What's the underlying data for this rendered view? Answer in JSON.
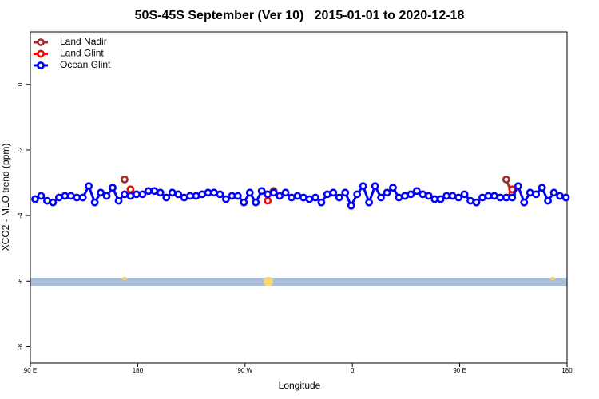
{
  "chart_data": {
    "type": "line",
    "title": "50S-45S September (Ver 10)   2015-01-01 to 2020-12-18",
    "x_label": "Longitude",
    "y_label": "XCO2 - MLO trend (ppm)",
    "xlim": [
      90,
      540
    ],
    "ylim": [
      -8.5,
      1.6
    ],
    "xticks": [
      {
        "value": 90,
        "label": "90 E"
      },
      {
        "value": 180,
        "label": "180"
      },
      {
        "value": 270,
        "label": "90 W"
      },
      {
        "value": 360,
        "label": "0"
      },
      {
        "value": 450,
        "label": "90 E"
      },
      {
        "value": 540,
        "label": "180"
      }
    ],
    "yticks": [
      0,
      -2,
      -4,
      -6,
      -8
    ],
    "legend": "top-left",
    "x": [
      94,
      99,
      104,
      109,
      114,
      119,
      124,
      129,
      134,
      139,
      144,
      149,
      154,
      159,
      164,
      169,
      174,
      179,
      184,
      189,
      194,
      199,
      204,
      209,
      214,
      219,
      224,
      229,
      234,
      239,
      244,
      249,
      254,
      259,
      264,
      269,
      274,
      279,
      284,
      289,
      294,
      299,
      304,
      309,
      314,
      319,
      324,
      329,
      334,
      339,
      344,
      349,
      354,
      359,
      364,
      369,
      374,
      379,
      384,
      389,
      394,
      399,
      404,
      409,
      414,
      419,
      424,
      429,
      434,
      439,
      444,
      449,
      454,
      459,
      464,
      469,
      474,
      479,
      484,
      489,
      494,
      499,
      504,
      509,
      514,
      519,
      524,
      529,
      534,
      539
    ],
    "series": [
      {
        "name": "Land Nadir",
        "color": "#a52a2a",
        "values": [
          null,
          null,
          null,
          null,
          null,
          null,
          null,
          null,
          null,
          null,
          null,
          null,
          null,
          null,
          null,
          -2.9,
          null,
          null,
          null,
          null,
          null,
          null,
          null,
          null,
          null,
          null,
          null,
          null,
          null,
          null,
          null,
          null,
          null,
          null,
          null,
          null,
          null,
          null,
          null,
          -3.35,
          -3.25,
          null,
          null,
          null,
          null,
          null,
          null,
          null,
          null,
          null,
          null,
          null,
          null,
          null,
          null,
          null,
          null,
          null,
          null,
          null,
          null,
          null,
          null,
          null,
          null,
          null,
          null,
          null,
          null,
          null,
          null,
          null,
          null,
          null,
          null,
          null,
          null,
          null,
          null,
          -2.9,
          -3.35,
          null,
          null,
          null,
          null,
          null,
          null,
          null,
          null,
          null
        ]
      },
      {
        "name": "Land Glint",
        "color": "#ff0000",
        "values": [
          null,
          null,
          null,
          null,
          null,
          null,
          null,
          null,
          null,
          null,
          null,
          null,
          null,
          null,
          null,
          null,
          -3.2,
          null,
          null,
          null,
          null,
          null,
          null,
          null,
          null,
          null,
          null,
          null,
          null,
          null,
          null,
          null,
          null,
          null,
          null,
          null,
          null,
          null,
          null,
          -3.55,
          null,
          null,
          null,
          null,
          null,
          null,
          null,
          null,
          null,
          null,
          null,
          null,
          null,
          null,
          null,
          null,
          null,
          null,
          null,
          null,
          null,
          null,
          null,
          null,
          null,
          null,
          null,
          null,
          null,
          null,
          null,
          null,
          null,
          null,
          null,
          null,
          null,
          null,
          null,
          null,
          -3.2,
          null,
          null,
          null,
          null,
          null,
          null,
          null,
          null,
          null
        ]
      },
      {
        "name": "Ocean Glint",
        "color": "#0000ff",
        "values": [
          -3.5,
          -3.4,
          -3.55,
          -3.6,
          -3.45,
          -3.4,
          -3.4,
          -3.45,
          -3.45,
          -3.1,
          -3.6,
          -3.3,
          -3.4,
          -3.15,
          -3.55,
          -3.35,
          -3.4,
          -3.35,
          -3.35,
          -3.25,
          -3.25,
          -3.3,
          -3.45,
          -3.3,
          -3.35,
          -3.45,
          -3.4,
          -3.4,
          -3.35,
          -3.3,
          -3.3,
          -3.35,
          -3.5,
          -3.4,
          -3.4,
          -3.6,
          -3.3,
          -3.6,
          -3.25,
          -3.35,
          -3.3,
          -3.4,
          -3.3,
          -3.45,
          -3.4,
          -3.45,
          -3.5,
          -3.45,
          -3.6,
          -3.35,
          -3.3,
          -3.45,
          -3.3,
          -3.7,
          -3.35,
          -3.1,
          -3.6,
          -3.1,
          -3.45,
          -3.3,
          -3.15,
          -3.45,
          -3.4,
          -3.35,
          -3.25,
          -3.35,
          -3.4,
          -3.5,
          -3.5,
          -3.4,
          -3.4,
          -3.45,
          -3.35,
          -3.55,
          -3.6,
          -3.45,
          -3.4,
          -3.4,
          -3.45,
          -3.45,
          -3.45,
          -3.1,
          -3.6,
          -3.3,
          -3.35,
          -3.15,
          -3.55,
          -3.3,
          -3.4,
          -3.45
        ]
      }
    ]
  }
}
